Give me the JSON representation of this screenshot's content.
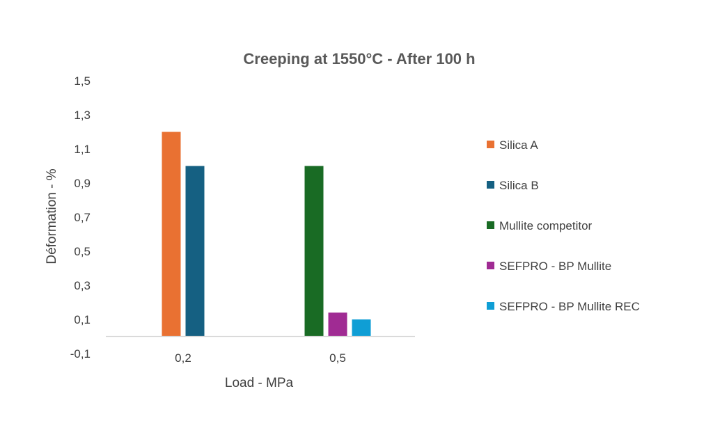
{
  "chart_data": {
    "type": "bar",
    "title": "Creeping at 1550°C - After 100 h",
    "xlabel": "Load - MPa",
    "ylabel": "Déformation - %",
    "categories": [
      "0,2",
      "0,5"
    ],
    "ylim": [
      -0.1,
      1.5
    ],
    "yticks": [
      "1,5",
      "1,3",
      "1,1",
      "0,9",
      "0,7",
      "0,5",
      "0,3",
      "0,1",
      "-0,1"
    ],
    "ytick_values": [
      1.5,
      1.3,
      1.1,
      0.9,
      0.7,
      0.5,
      0.3,
      0.1,
      -0.1
    ],
    "baseline": 0,
    "grid": false,
    "legend_position": "right",
    "series": [
      {
        "name": "Silica A",
        "color": "#E97132",
        "values": [
          1.2,
          null
        ]
      },
      {
        "name": "Silica B",
        "color": "#156082",
        "values": [
          1.0,
          null
        ]
      },
      {
        "name": "Mullite competitor",
        "color": "#196B24",
        "values": [
          null,
          1.0
        ]
      },
      {
        "name": "SEFPRO - BP Mullite",
        "color": "#A02B93",
        "values": [
          null,
          0.14
        ]
      },
      {
        "name": "SEFPRO - BP Mullite REC",
        "color": "#0F9ED5",
        "values": [
          null,
          0.1
        ]
      }
    ]
  }
}
